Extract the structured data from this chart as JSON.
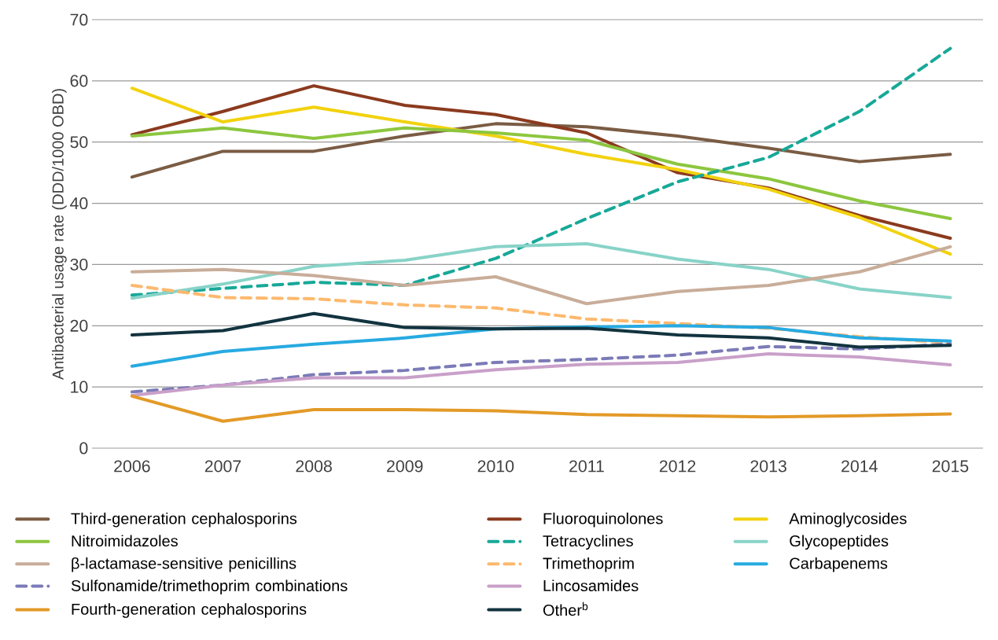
{
  "chart_data": {
    "type": "line",
    "ylabel": "Antibacterial usage rate (DDD/1000 OBD)",
    "categories": [
      "2006",
      "2007",
      "2008",
      "2009",
      "2010",
      "2011",
      "2012",
      "2013",
      "2014",
      "2015"
    ],
    "ylim": [
      0,
      70
    ],
    "yticks": [
      0,
      10,
      20,
      30,
      40,
      50,
      60,
      70
    ],
    "grid": "y",
    "legend": "bottom",
    "series": [
      {
        "name": "Third-generation cephalosporins",
        "color": "#7a5c44",
        "values": [
          44.3,
          48.5,
          48.5,
          51,
          53,
          52.5,
          51,
          49,
          46.8,
          48
        ]
      },
      {
        "name": "Nitroimidazoles",
        "color": "#8cc63f",
        "values": [
          51,
          52.3,
          50.6,
          52.3,
          51.5,
          50.3,
          46.4,
          44,
          40.4,
          37.5
        ]
      },
      {
        "name": "β-lactamase-sensitive penicillins",
        "color": "#c8ad99",
        "values": [
          28.8,
          29.2,
          28.2,
          26.6,
          28,
          23.6,
          25.6,
          26.6,
          28.8,
          32.9
        ]
      },
      {
        "name": "Sulfonamide/trimethoprim combinations",
        "color": "#7b7bb8",
        "line_style": "dashed",
        "values": [
          9.2,
          10.3,
          12,
          12.7,
          14,
          14.5,
          15.2,
          16.6,
          16.2,
          17
        ]
      },
      {
        "name": "Fourth-generation cephalosporins",
        "color": "#e39a27",
        "values": [
          8.5,
          4.4,
          6.3,
          6.3,
          6.1,
          5.5,
          5.3,
          5.1,
          5.3,
          5.6
        ]
      },
      {
        "name": "Fluoroquinolones",
        "color": "#8b3a1e",
        "values": [
          51.2,
          55,
          59.2,
          56,
          54.5,
          51.5,
          45,
          42.5,
          38,
          34.3
        ]
      },
      {
        "name": "Tetracyclines",
        "color": "#17a898",
        "line_style": "dashed",
        "values": [
          25,
          26.1,
          27.1,
          26.6,
          31,
          37.5,
          43.5,
          47.5,
          55,
          65.3
        ]
      },
      {
        "name": "Trimethoprim",
        "color": "#fdb96e",
        "line_style": "dashed",
        "values": [
          26.6,
          24.6,
          24.4,
          23.4,
          22.9,
          21.1,
          null,
          19.6,
          18.2,
          17.2
        ]
      },
      {
        "name": "Lincosamides",
        "color": "#c9a0c9",
        "values": [
          8.6,
          10.3,
          11.5,
          11.5,
          12.8,
          13.7,
          14,
          15.4,
          14.9,
          13.6
        ]
      },
      {
        "name": "Other$^{b}$",
        "color": "#12333f",
        "values": [
          18.5,
          19.2,
          22,
          19.7,
          19.5,
          19.6,
          18.5,
          18,
          16.5,
          16.8
        ]
      },
      {
        "name": "Aminoglycosides",
        "color": "#f2d20f",
        "values": [
          58.8,
          53.3,
          55.7,
          53.3,
          51,
          48,
          45.5,
          42.3,
          37.7,
          31.7
        ]
      },
      {
        "name": "Glycopeptides",
        "color": "#88d3c8",
        "values": [
          24.5,
          26.8,
          29.7,
          30.7,
          32.9,
          33.4,
          30.9,
          29.2,
          26,
          24.6
        ]
      },
      {
        "name": "Carbapenems",
        "color": "#27aae1",
        "values": [
          13.4,
          15.8,
          17,
          18,
          19.5,
          19.8,
          20,
          19.7,
          18,
          17.5
        ]
      }
    ]
  }
}
